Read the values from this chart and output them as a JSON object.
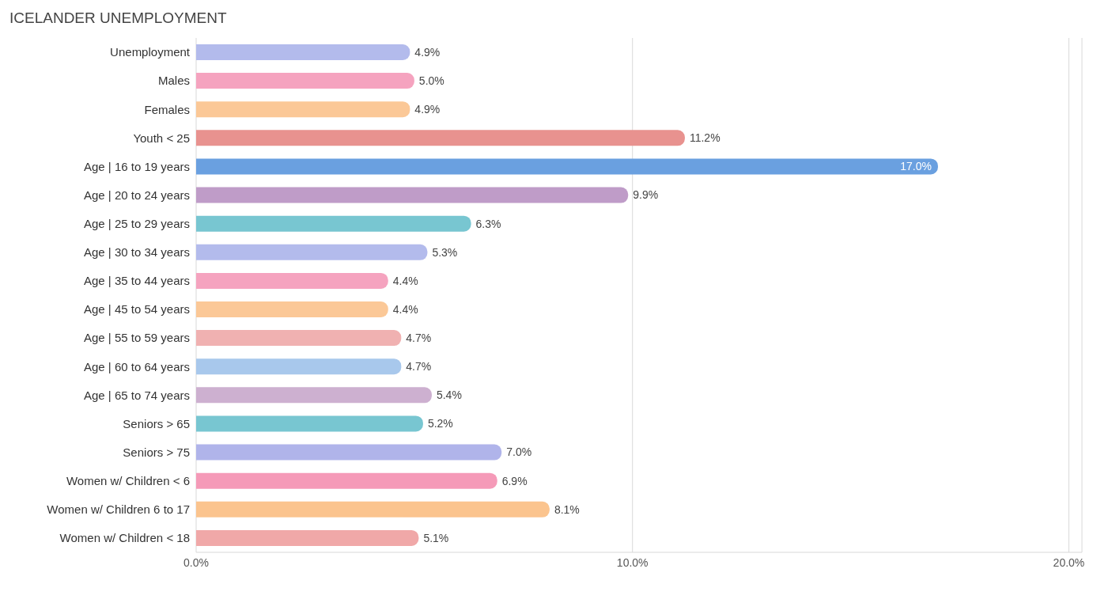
{
  "chart_data": {
    "type": "bar",
    "orientation": "horizontal",
    "title": "ICELANDER UNEMPLOYMENT",
    "categories": [
      "Unemployment",
      "Males",
      "Females",
      "Youth < 25",
      "Age | 16 to 19 years",
      "Age | 20 to 24 years",
      "Age | 25 to 29 years",
      "Age | 30 to 34 years",
      "Age | 35 to 44 years",
      "Age | 45 to 54 years",
      "Age | 55 to 59 years",
      "Age | 60 to 64 years",
      "Age | 65 to 74 years",
      "Seniors > 65",
      "Seniors > 75",
      "Women w/ Children < 6",
      "Women w/ Children 6 to 17",
      "Women w/ Children < 18"
    ],
    "values": [
      4.9,
      5.0,
      4.9,
      11.2,
      17.0,
      9.9,
      6.3,
      5.3,
      4.4,
      4.4,
      4.7,
      4.7,
      5.4,
      5.2,
      7.0,
      6.9,
      8.1,
      5.1
    ],
    "colors": [
      "#b3bbec",
      "#f5a3bf",
      "#fbc897",
      "#e8928f",
      "#6aa0e0",
      "#bf9cc8",
      "#78c6d1",
      "#b3bbec",
      "#f5a3bf",
      "#fbc897",
      "#f0b1b1",
      "#a8c8ec",
      "#cdb0d0",
      "#78c6d1",
      "#b0b4ea",
      "#f59ab8",
      "#fbc48e",
      "#f0a8a8"
    ],
    "value_labels": [
      "4.9%",
      "5.0%",
      "4.9%",
      "11.2%",
      "17.0%",
      "9.9%",
      "6.3%",
      "5.3%",
      "4.4%",
      "4.4%",
      "4.7%",
      "4.7%",
      "5.4%",
      "5.2%",
      "7.0%",
      "6.9%",
      "8.1%",
      "5.1%"
    ],
    "xlim": [
      0,
      20.3
    ],
    "xticks": [
      {
        "value": 0,
        "label": "0.0%"
      },
      {
        "value": 10,
        "label": "10.0%"
      },
      {
        "value": 20,
        "label": "20.0%"
      }
    ],
    "grid": "x"
  }
}
